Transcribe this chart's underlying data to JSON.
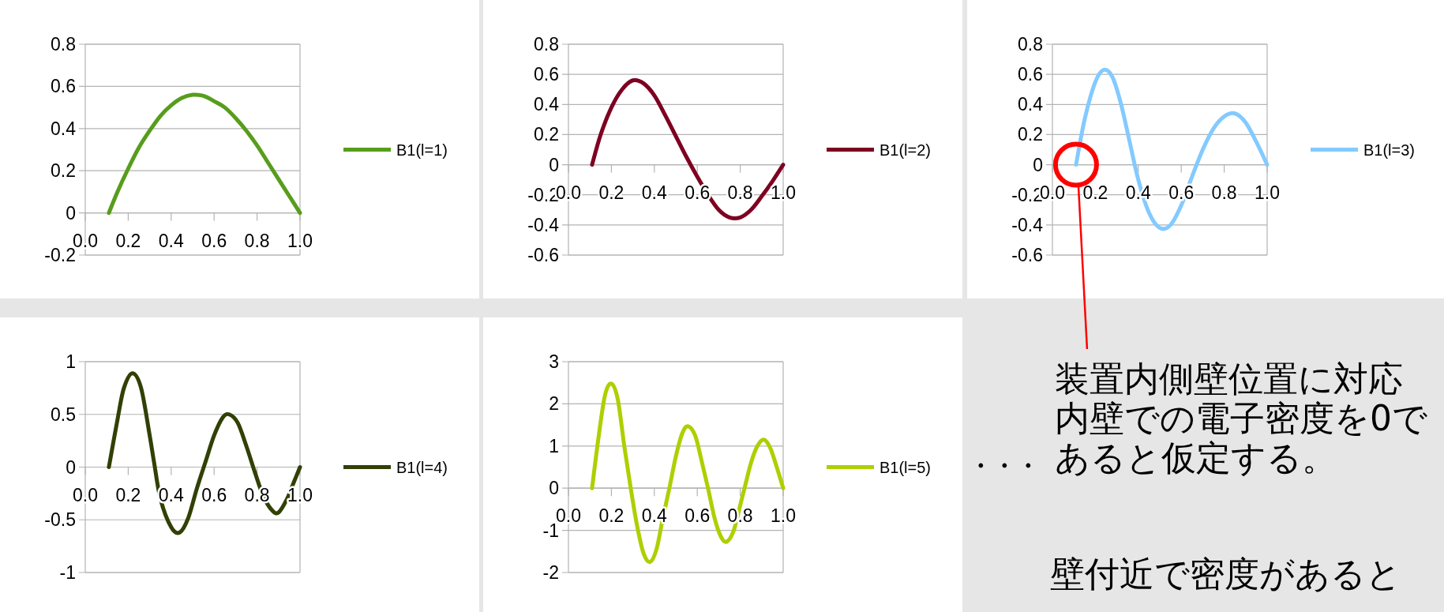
{
  "chart_data": [
    {
      "type": "line",
      "x": [
        0.11,
        0.15,
        0.2,
        0.25,
        0.3,
        0.35,
        0.4,
        0.45,
        0.5,
        0.55,
        0.6,
        0.65,
        0.7,
        0.75,
        0.8,
        0.85,
        0.9,
        0.95,
        1.0
      ],
      "series": [
        {
          "name": "B1(l=1)",
          "color": "#579d1c",
          "values": [
            0,
            0.1,
            0.21,
            0.31,
            0.39,
            0.46,
            0.51,
            0.545,
            0.56,
            0.555,
            0.53,
            0.5,
            0.45,
            0.39,
            0.32,
            0.24,
            0.16,
            0.08,
            0
          ]
        }
      ],
      "xlim": [
        0,
        1
      ],
      "ylim": [
        -0.2,
        0.8
      ],
      "xticks": [
        {
          "value": 0,
          "label": "0.0"
        },
        {
          "value": 0.2,
          "label": "0.2"
        },
        {
          "value": 0.4,
          "label": "0.4"
        },
        {
          "value": 0.6,
          "label": "0.6"
        },
        {
          "value": 0.8,
          "label": "0.8"
        },
        {
          "value": 1,
          "label": "1.0"
        }
      ],
      "yticks": [
        -0.2,
        0,
        0.2,
        0.4,
        0.6,
        0.8
      ],
      "grid": "y",
      "legend": "right"
    },
    {
      "type": "line",
      "x": [
        0.11,
        0.15,
        0.2,
        0.25,
        0.3,
        0.35,
        0.4,
        0.45,
        0.5,
        0.55,
        0.6,
        0.65,
        0.7,
        0.75,
        0.8,
        0.85,
        0.9,
        0.95,
        1.0
      ],
      "series": [
        {
          "name": "B1(l=2)",
          "color": "#7e0021",
          "values": [
            0,
            0.2,
            0.38,
            0.5,
            0.56,
            0.54,
            0.46,
            0.33,
            0.19,
            0.05,
            -0.08,
            -0.2,
            -0.3,
            -0.35,
            -0.35,
            -0.3,
            -0.21,
            -0.11,
            0
          ]
        }
      ],
      "xlim": [
        0,
        1
      ],
      "ylim": [
        -0.6,
        0.8
      ],
      "xticks": [
        {
          "value": 0,
          "label": "0.0"
        },
        {
          "value": 0.2,
          "label": "0.2"
        },
        {
          "value": 0.4,
          "label": "0.4"
        },
        {
          "value": 0.6,
          "label": "0.6"
        },
        {
          "value": 0.8,
          "label": "0.8"
        },
        {
          "value": 1,
          "label": "1.0"
        }
      ],
      "yticks": [
        -0.6,
        -0.4,
        -0.2,
        0,
        0.2,
        0.4,
        0.6,
        0.8
      ],
      "grid": "y",
      "legend": "right"
    },
    {
      "type": "line",
      "x": [
        0.11,
        0.15,
        0.2,
        0.24,
        0.28,
        0.32,
        0.36,
        0.4,
        0.45,
        0.5,
        0.55,
        0.6,
        0.65,
        0.7,
        0.75,
        0.8,
        0.85,
        0.9,
        0.95,
        1.0
      ],
      "series": [
        {
          "name": "B1(l=3)",
          "color": "#83caff",
          "values": [
            0,
            0.3,
            0.55,
            0.63,
            0.58,
            0.4,
            0.15,
            -0.1,
            -0.32,
            -0.42,
            -0.4,
            -0.27,
            -0.08,
            0.1,
            0.24,
            0.32,
            0.34,
            0.28,
            0.15,
            0
          ]
        }
      ],
      "xlim": [
        0,
        1
      ],
      "ylim": [
        -0.6,
        0.8
      ],
      "xticks": [
        {
          "value": 0,
          "label": "0.0"
        },
        {
          "value": 0.2,
          "label": "0.2"
        },
        {
          "value": 0.4,
          "label": "0.4"
        },
        {
          "value": 0.6,
          "label": "0.6"
        },
        {
          "value": 0.8,
          "label": "0.8"
        },
        {
          "value": 1,
          "label": "1.0"
        }
      ],
      "yticks": [
        -0.6,
        -0.4,
        -0.2,
        0,
        0.2,
        0.4,
        0.6,
        0.8
      ],
      "grid": "y",
      "legend": "right",
      "annotations": [
        "装置内側壁位置に対応内壁での電子密度を0であると仮定する。",
        "壁付近で密度があると"
      ]
    },
    {
      "type": "line",
      "x": [
        0.11,
        0.15,
        0.18,
        0.22,
        0.26,
        0.3,
        0.32,
        0.35,
        0.4,
        0.44,
        0.48,
        0.52,
        0.56,
        0.6,
        0.64,
        0.67,
        0.71,
        0.75,
        0.79,
        0.83,
        0.87,
        0.9,
        0.94,
        0.97,
        1.0
      ],
      "series": [
        {
          "name": "B1(l=4)",
          "color": "#314004",
          "values": [
            0,
            0.45,
            0.75,
            0.89,
            0.75,
            0.3,
            0.05,
            -0.3,
            -0.57,
            -0.62,
            -0.48,
            -0.2,
            0.05,
            0.3,
            0.47,
            0.5,
            0.42,
            0.2,
            -0.05,
            -0.28,
            -0.41,
            -0.43,
            -0.3,
            -0.15,
            0
          ]
        }
      ],
      "xlim": [
        0,
        1
      ],
      "ylim": [
        -1,
        1
      ],
      "xticks": [
        {
          "value": 0,
          "label": "0.0"
        },
        {
          "value": 0.2,
          "label": "0.2"
        },
        {
          "value": 0.4,
          "label": "0.4"
        },
        {
          "value": 0.6,
          "label": "0.6"
        },
        {
          "value": 0.8,
          "label": "0.8"
        },
        {
          "value": 1,
          "label": "1.0"
        }
      ],
      "yticks": [
        -1,
        -0.5,
        0,
        0.5,
        1
      ],
      "grid": "y",
      "legend": "right"
    },
    {
      "type": "line",
      "x": [
        0.11,
        0.14,
        0.17,
        0.2,
        0.23,
        0.26,
        0.29,
        0.32,
        0.35,
        0.38,
        0.41,
        0.44,
        0.47,
        0.5,
        0.53,
        0.556,
        0.59,
        0.62,
        0.65,
        0.68,
        0.71,
        0.737,
        0.77,
        0.8,
        0.82,
        0.85,
        0.88,
        0.91,
        0.94,
        0.97,
        1.0
      ],
      "series": [
        {
          "name": "B1(l=5)",
          "color": "#aecf00",
          "values": [
            0,
            1.2,
            2.2,
            2.48,
            2.1,
            1.0,
            0,
            -0.9,
            -1.55,
            -1.75,
            -1.45,
            -0.7,
            0,
            0.75,
            1.3,
            1.47,
            1.25,
            0.65,
            0,
            -0.7,
            -1.15,
            -1.27,
            -1.0,
            -0.4,
            0,
            0.6,
            1.0,
            1.15,
            0.95,
            0.5,
            0
          ]
        }
      ],
      "xlim": [
        0,
        1
      ],
      "ylim": [
        -2,
        3
      ],
      "xticks": [
        {
          "value": 0,
          "label": "0.0"
        },
        {
          "value": 0.2,
          "label": "0.2"
        },
        {
          "value": 0.4,
          "label": "0.4"
        },
        {
          "value": 0.6,
          "label": "0.6"
        },
        {
          "value": 0.8,
          "label": "0.8"
        },
        {
          "value": 1,
          "label": "1.0"
        }
      ],
      "yticks": [
        -2,
        -1,
        0,
        1,
        2,
        3
      ],
      "grid": "y",
      "legend": "right",
      "annotations": [
        "・・・"
      ]
    }
  ]
}
